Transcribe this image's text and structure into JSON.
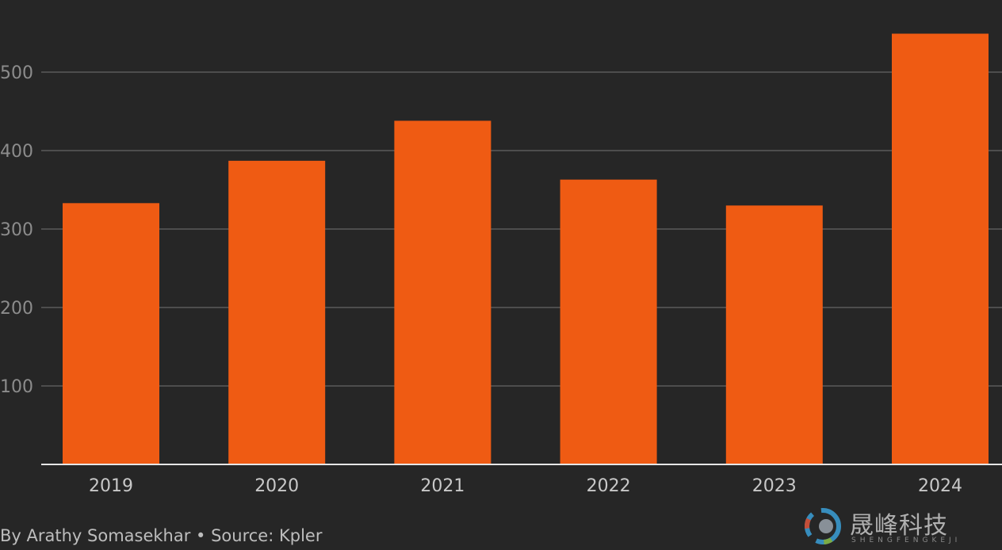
{
  "chart_data": {
    "type": "bar",
    "categories": [
      "2019",
      "2020",
      "2021",
      "2022",
      "2023",
      "2024"
    ],
    "values": [
      333,
      387,
      438,
      363,
      330,
      549
    ],
    "ylim": [
      0,
      560
    ],
    "yticks": [
      100,
      200,
      300,
      400,
      500
    ],
    "ytick_labels": [
      "100",
      "200",
      "300",
      "400",
      "500"
    ],
    "bar_color": "#ef5b13",
    "grid": true
  },
  "credit": "By Arathy Somasekhar • Source: Kpler",
  "watermark": {
    "text": "晟峰科技",
    "subtext": "SHENGFENGKEJI"
  }
}
